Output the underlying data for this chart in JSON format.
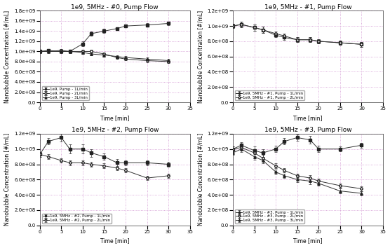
{
  "subplots": [
    {
      "title": "1e9, 5MHz - #0, Pump Flow",
      "series": [
        {
          "label": "1e9, Pump - 1L/min",
          "marker": "s",
          "fillstyle": "full",
          "x": [
            0,
            2,
            5,
            7,
            10,
            12,
            15,
            18,
            20,
            25,
            30
          ],
          "y": [
            1000000000.0,
            1020000000.0,
            1000000000.0,
            1000000000.0,
            1150000000.0,
            1350000000.0,
            1400000000.0,
            1450000000.0,
            1500000000.0,
            1520000000.0,
            1550000000.0
          ],
          "yerr": [
            30000000.0,
            30000000.0,
            30000000.0,
            40000000.0,
            50000000.0,
            40000000.0,
            40000000.0,
            30000000.0,
            30000000.0,
            30000000.0,
            30000000.0
          ]
        },
        {
          "label": "1e9, Pump - 2L/min",
          "marker": "o",
          "fillstyle": "none",
          "x": [
            0,
            2,
            5,
            7,
            10,
            12,
            15,
            18,
            20,
            25,
            30
          ],
          "y": [
            1000000000.0,
            1000000000.0,
            1020000000.0,
            1000000000.0,
            1000000000.0,
            1000000000.0,
            950000000.0,
            880000000.0,
            850000000.0,
            820000000.0,
            800000000.0
          ],
          "yerr": [
            30000000.0,
            30000000.0,
            30000000.0,
            30000000.0,
            30000000.0,
            30000000.0,
            30000000.0,
            30000000.0,
            30000000.0,
            30000000.0,
            30000000.0
          ]
        },
        {
          "label": "1e9, Pump - 3L/min",
          "marker": "^",
          "fillstyle": "full",
          "x": [
            0,
            2,
            5,
            7,
            10,
            12,
            15,
            18,
            20,
            25,
            30
          ],
          "y": [
            1000000000.0,
            1000000000.0,
            1000000000.0,
            1000000000.0,
            980000000.0,
            950000000.0,
            930000000.0,
            900000000.0,
            880000000.0,
            850000000.0,
            820000000.0
          ],
          "yerr": [
            30000000.0,
            30000000.0,
            30000000.0,
            30000000.0,
            30000000.0,
            30000000.0,
            30000000.0,
            30000000.0,
            30000000.0,
            30000000.0,
            30000000.0
          ]
        }
      ],
      "ylim": [
        0,
        1800000000.0
      ],
      "yticks": [
        0,
        200000000.0,
        400000000.0,
        600000000.0,
        800000000.0,
        1000000000.0,
        1200000000.0,
        1400000000.0,
        1600000000.0,
        1800000000.0
      ]
    },
    {
      "title": "1e9, 5MHz - #1, Pump Flow",
      "series": [
        {
          "label": "1e9, 5MHz - #1, Pump - 1L/min",
          "marker": "s",
          "fillstyle": "full",
          "x": [
            0,
            2,
            5,
            7,
            10,
            12,
            15,
            18,
            20,
            25,
            30
          ],
          "y": [
            1000000000.0,
            1020000000.0,
            980000000.0,
            950000000.0,
            880000000.0,
            850000000.0,
            820000000.0,
            820000000.0,
            800000000.0,
            780000000.0,
            760000000.0
          ],
          "yerr": [
            30000000.0,
            40000000.0,
            40000000.0,
            40000000.0,
            30000000.0,
            30000000.0,
            30000000.0,
            30000000.0,
            30000000.0,
            30000000.0,
            30000000.0
          ]
        },
        {
          "label": "1e9, 5MHz - #1, Pump - 2L/min",
          "marker": "o",
          "fillstyle": "none",
          "x": [
            0,
            2,
            5,
            7,
            10,
            12,
            15,
            18,
            20,
            25,
            30
          ],
          "y": [
            1000000000.0,
            1020000000.0,
            980000000.0,
            950000000.0,
            900000000.0,
            870000000.0,
            820000000.0,
            820000000.0,
            800000000.0,
            780000000.0,
            760000000.0
          ],
          "yerr": [
            30000000.0,
            40000000.0,
            40000000.0,
            40000000.0,
            30000000.0,
            30000000.0,
            30000000.0,
            30000000.0,
            30000000.0,
            30000000.0,
            30000000.0
          ]
        }
      ],
      "ylim": [
        0,
        1200000000.0
      ],
      "yticks": [
        0,
        200000000.0,
        400000000.0,
        600000000.0,
        800000000.0,
        1000000000.0,
        1200000000.0
      ]
    },
    {
      "title": "1e9, 5MHz - #2, Pump Flow",
      "series": [
        {
          "label": "1e9, 5MHz - #2, Pump - 1L/min",
          "marker": "s",
          "fillstyle": "full",
          "x": [
            0,
            2,
            5,
            7,
            10,
            12,
            15,
            18,
            20,
            25,
            30
          ],
          "y": [
            930000000.0,
            1100000000.0,
            1150000000.0,
            1000000000.0,
            1000000000.0,
            950000000.0,
            900000000.0,
            820000000.0,
            820000000.0,
            820000000.0,
            800000000.0
          ],
          "yerr": [
            30000000.0,
            40000000.0,
            50000000.0,
            60000000.0,
            60000000.0,
            50000000.0,
            40000000.0,
            50000000.0,
            30000000.0,
            30000000.0,
            30000000.0
          ]
        },
        {
          "label": "1e9, 5MHz - #2, Pump - 2L/min",
          "marker": "o",
          "fillstyle": "none",
          "x": [
            0,
            2,
            5,
            7,
            10,
            12,
            15,
            18,
            20,
            25,
            30
          ],
          "y": [
            930000000.0,
            900000000.0,
            850000000.0,
            820000000.0,
            820000000.0,
            800000000.0,
            780000000.0,
            750000000.0,
            720000000.0,
            620000000.0,
            650000000.0
          ],
          "yerr": [
            30000000.0,
            30000000.0,
            30000000.0,
            30000000.0,
            30000000.0,
            30000000.0,
            30000000.0,
            30000000.0,
            30000000.0,
            30000000.0,
            30000000.0
          ]
        }
      ],
      "ylim": [
        0,
        1200000000.0
      ],
      "yticks": [
        0,
        200000000.0,
        400000000.0,
        600000000.0,
        800000000.0,
        1000000000.0,
        1200000000.0
      ]
    },
    {
      "title": "1e9, 5MHz - #3, Pump Flow",
      "series": [
        {
          "label": "1e9, 5MHz - #3, Pump - 1L/min",
          "marker": "s",
          "fillstyle": "full",
          "x": [
            0,
            2,
            5,
            7,
            10,
            12,
            15,
            18,
            20,
            25,
            30
          ],
          "y": [
            1000000000.0,
            1050000000.0,
            980000000.0,
            950000000.0,
            1000000000.0,
            1100000000.0,
            1150000000.0,
            1120000000.0,
            1000000000.0,
            1000000000.0,
            1050000000.0
          ],
          "yerr": [
            30000000.0,
            40000000.0,
            50000000.0,
            50000000.0,
            40000000.0,
            40000000.0,
            40000000.0,
            50000000.0,
            40000000.0,
            30000000.0,
            30000000.0
          ]
        },
        {
          "label": "1e9, 5MHz - #3, Pump - 2L/min",
          "marker": "o",
          "fillstyle": "none",
          "x": [
            0,
            2,
            5,
            7,
            10,
            12,
            15,
            18,
            20,
            25,
            30
          ],
          "y": [
            1000000000.0,
            1020000000.0,
            950000000.0,
            880000000.0,
            780000000.0,
            720000000.0,
            650000000.0,
            620000000.0,
            580000000.0,
            520000000.0,
            480000000.0
          ],
          "yerr": [
            30000000.0,
            40000000.0,
            40000000.0,
            40000000.0,
            30000000.0,
            30000000.0,
            30000000.0,
            40000000.0,
            30000000.0,
            30000000.0,
            30000000.0
          ]
        },
        {
          "label": "1e9, 5MHz - #3, Pump - 3L/min",
          "marker": "^",
          "fillstyle": "full",
          "x": [
            0,
            2,
            5,
            7,
            10,
            12,
            15,
            18,
            20,
            25,
            30
          ],
          "y": [
            950000000.0,
            1000000000.0,
            900000000.0,
            850000000.0,
            700000000.0,
            650000000.0,
            600000000.0,
            580000000.0,
            550000000.0,
            450000000.0,
            420000000.0
          ],
          "yerr": [
            30000000.0,
            40000000.0,
            40000000.0,
            40000000.0,
            30000000.0,
            30000000.0,
            30000000.0,
            40000000.0,
            30000000.0,
            30000000.0,
            30000000.0
          ]
        }
      ],
      "ylim": [
        0,
        1200000000.0
      ],
      "yticks": [
        0,
        200000000.0,
        400000000.0,
        600000000.0,
        800000000.0,
        1000000000.0,
        1200000000.0
      ]
    }
  ],
  "xlabel": "Time [min]",
  "ylabel": "Nanobubble Concentration [#/mL]",
  "xlim": [
    0,
    35
  ],
  "xticks": [
    0,
    5,
    10,
    15,
    20,
    25,
    30,
    35
  ],
  "grid_color": "#cc88cc",
  "line_color": "#333333",
  "bg_color": "#ffffff",
  "font_size": 5.5,
  "title_font_size": 6.5,
  "legend_font_size": 4.0
}
